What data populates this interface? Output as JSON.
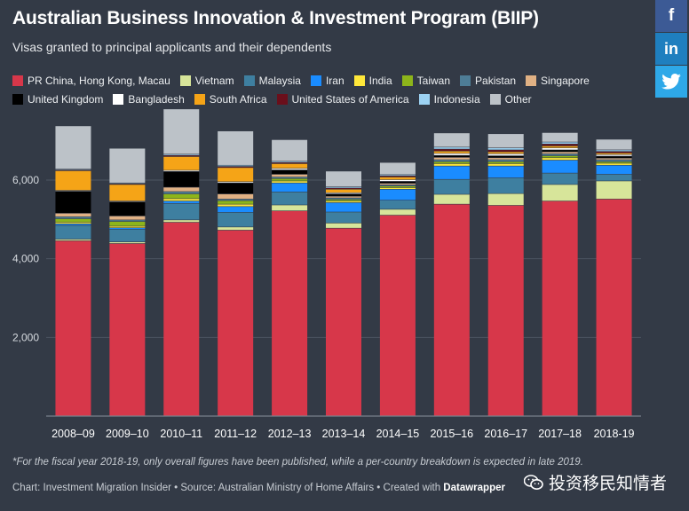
{
  "header": {
    "title": "Australian Business Innovation & Investment Program (BIIP)",
    "subtitle": "Visas granted to principal applicants and their dependents"
  },
  "share": {
    "facebook": "f",
    "linkedin": "in",
    "twitter": "twitter-bird-icon"
  },
  "footer": {
    "footnote": "*For the fiscal year 2018-19, only overall figures have been published, while a per-country breakdown is expected in late 2019.",
    "credit_prefix": "Chart: Investment Migration Insider • Source: Australian Ministry of Home Affairs • Created with ",
    "credit_tool": "Datawrapper",
    "watermark": "投资移民知情者"
  },
  "chart_data": {
    "type": "bar",
    "stacked": true,
    "categories": [
      "2008–09",
      "2009–10",
      "2010–11",
      "2011–12",
      "2012–13",
      "2013–14",
      "2014–15",
      "2015–16",
      "2016–17",
      "2017–18",
      "2018-19"
    ],
    "ylim": [
      0,
      7600
    ],
    "yticks": [
      2000,
      4000,
      6000
    ],
    "ytick_labels": [
      "2,000",
      "4,000",
      "6,000"
    ],
    "series": [
      {
        "name": "PR China, Hong Kong, Macau",
        "color": "#d7374a",
        "values": [
          4450,
          4380,
          4920,
          4720,
          5210,
          4770,
          5100,
          5380,
          5350,
          5460,
          5510
        ]
      },
      {
        "name": "Vietnam",
        "color": "#d7e59a",
        "values": [
          40,
          40,
          60,
          80,
          150,
          130,
          150,
          250,
          300,
          420,
          460
        ]
      },
      {
        "name": "Malaysia",
        "color": "#3e7fa0",
        "values": [
          350,
          320,
          420,
          370,
          330,
          280,
          230,
          380,
          400,
          290,
          170
        ]
      },
      {
        "name": "Iran",
        "color": "#1a8cff",
        "values": [
          40,
          40,
          60,
          150,
          230,
          240,
          280,
          340,
          300,
          330,
          230
        ]
      },
      {
        "name": "India",
        "color": "#ffe83a",
        "values": [
          40,
          40,
          60,
          60,
          50,
          40,
          40,
          60,
          60,
          60,
          50
        ]
      },
      {
        "name": "Taiwan",
        "color": "#8db51a",
        "values": [
          90,
          120,
          120,
          90,
          60,
          40,
          40,
          50,
          50,
          50,
          40
        ]
      },
      {
        "name": "Pakistan",
        "color": "#4e7d96",
        "values": [
          50,
          40,
          60,
          40,
          40,
          40,
          30,
          50,
          50,
          50,
          50
        ]
      },
      {
        "name": "Singapore",
        "color": "#e0b184",
        "values": [
          90,
          100,
          110,
          130,
          70,
          40,
          40,
          60,
          50,
          50,
          40
        ]
      },
      {
        "name": "United Kingdom",
        "color": "#000000",
        "values": [
          560,
          360,
          400,
          280,
          110,
          60,
          50,
          50,
          50,
          50,
          50
        ]
      },
      {
        "name": "Bangladesh",
        "color": "#ffffff",
        "values": [
          20,
          20,
          30,
          30,
          40,
          30,
          40,
          50,
          50,
          50,
          40
        ]
      },
      {
        "name": "South Africa",
        "color": "#f5a417",
        "values": [
          500,
          420,
          350,
          360,
          120,
          90,
          70,
          60,
          50,
          50,
          40
        ]
      },
      {
        "name": "United States of America",
        "color": "#6a0f1b",
        "values": [
          20,
          20,
          30,
          30,
          30,
          30,
          30,
          50,
          50,
          50,
          40
        ]
      },
      {
        "name": "Indonesia",
        "color": "#9cd2f2",
        "values": [
          20,
          20,
          30,
          30,
          30,
          30,
          30,
          50,
          50,
          50,
          40
        ]
      },
      {
        "name": "Other",
        "color": "#bcc2c8",
        "values": [
          1100,
          880,
          1150,
          870,
          550,
          400,
          310,
          360,
          360,
          240,
          270
        ]
      }
    ]
  }
}
